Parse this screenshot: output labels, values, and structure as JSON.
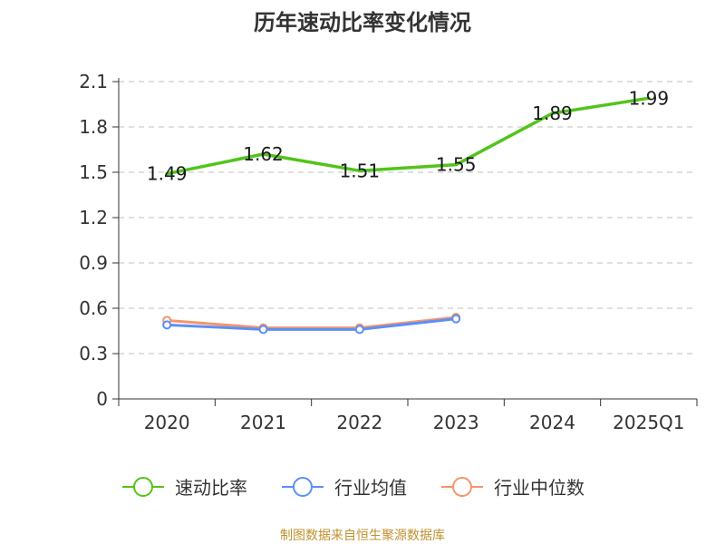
{
  "chart_data": {
    "type": "line",
    "title": "历年速动比率变化情况",
    "categories": [
      "2020",
      "2021",
      "2022",
      "2023",
      "2024",
      "2025Q1"
    ],
    "ylim": [
      0,
      2.1
    ],
    "yticks": [
      "0",
      "0.3",
      "0.6",
      "0.9",
      "1.2",
      "1.5",
      "1.8",
      "2.1"
    ],
    "grid": true,
    "legend_position": "bottom",
    "series": [
      {
        "name": "速动比率",
        "color": "#52c41a",
        "values": [
          1.49,
          1.62,
          1.51,
          1.55,
          1.89,
          1.99
        ],
        "labels": [
          "1.49",
          "1.62",
          "1.51",
          "1.55",
          "1.89",
          "1.99"
        ],
        "show_markers": false,
        "show_labels": true
      },
      {
        "name": "行业均值",
        "color": "#5b8ff9",
        "values": [
          0.49,
          0.46,
          0.46,
          0.53,
          null,
          null
        ],
        "show_markers": true,
        "show_labels": false
      },
      {
        "name": "行业中位数",
        "color": "#f4956a",
        "values": [
          0.52,
          0.47,
          0.47,
          0.54,
          null,
          null
        ],
        "show_markers": true,
        "show_labels": false
      }
    ]
  },
  "footer": {
    "source": "制图数据来自恒生聚源数据库"
  }
}
